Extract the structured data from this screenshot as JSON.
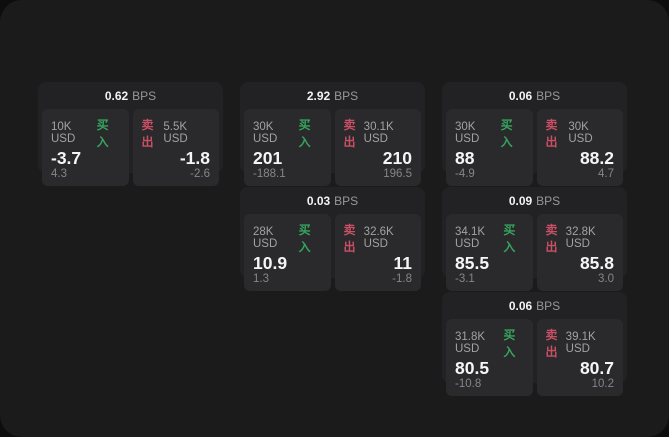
{
  "labels": {
    "buy": "买入",
    "sell": "卖出",
    "bps_suffix": "BPS"
  },
  "colors": {
    "buy_accent": "#37a35f",
    "sell_accent": "#c94f64",
    "window_bg": "#1b1b1c",
    "card_bg": "#222224",
    "panel_bg": "#2a2a2c"
  },
  "cards": [
    {
      "bps": "0.62",
      "buy": {
        "size": "10K USD",
        "price": "-3.7",
        "delta": "4.3"
      },
      "sell": {
        "size": "5.5K USD",
        "price": "-1.8",
        "delta": "-2.6"
      }
    },
    {
      "bps": "2.92",
      "buy": {
        "size": "30K USD",
        "price": "201",
        "delta": "-188.1"
      },
      "sell": {
        "size": "30.1K USD",
        "price": "210",
        "delta": "196.5"
      }
    },
    {
      "bps": "0.06",
      "buy": {
        "size": "30K USD",
        "price": "88",
        "delta": "-4.9"
      },
      "sell": {
        "size": "30K USD",
        "price": "88.2",
        "delta": "4.7"
      }
    },
    {
      "bps": "0.03",
      "buy": {
        "size": "28K USD",
        "price": "10.9",
        "delta": "1.3"
      },
      "sell": {
        "size": "32.6K USD",
        "price": "11",
        "delta": "-1.8"
      }
    },
    {
      "bps": "0.09",
      "buy": {
        "size": "34.1K USD",
        "price": "85.5",
        "delta": "-3.1"
      },
      "sell": {
        "size": "32.8K USD",
        "price": "85.8",
        "delta": "3.0"
      }
    },
    {
      "bps": "0.06",
      "buy": {
        "size": "31.8K USD",
        "price": "80.5",
        "delta": "-10.8"
      },
      "sell": {
        "size": "39.1K USD",
        "price": "80.7",
        "delta": "10.2"
      }
    }
  ]
}
